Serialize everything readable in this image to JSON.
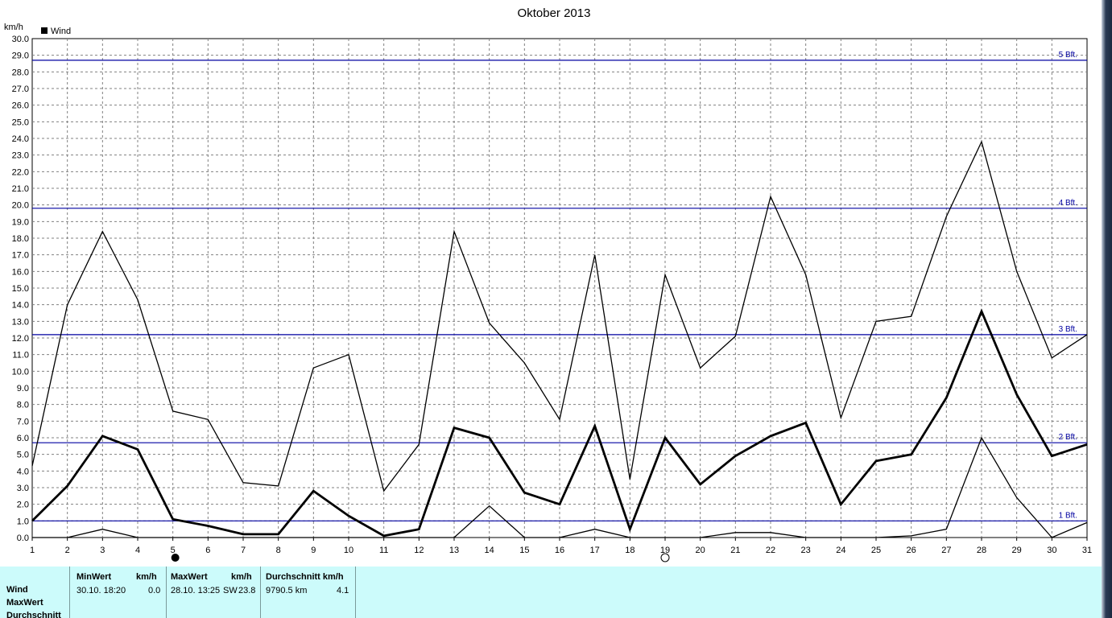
{
  "chart_data": {
    "type": "line",
    "title": "Oktober 2013",
    "ylabel": "km/h",
    "legend": "Wind",
    "ylim": [
      0,
      30
    ],
    "yticks": [
      "0.0",
      "1.0",
      "2.0",
      "3.0",
      "4.0",
      "5.0",
      "6.0",
      "7.0",
      "8.0",
      "9.0",
      "10.0",
      "11.0",
      "12.0",
      "13.0",
      "14.0",
      "15.0",
      "16.0",
      "17.0",
      "18.0",
      "19.0",
      "20.0",
      "21.0",
      "22.0",
      "23.0",
      "24.0",
      "25.0",
      "26.0",
      "27.0",
      "28.0",
      "29.0",
      "30.0"
    ],
    "x": [
      "1",
      "2",
      "3",
      "4",
      "5",
      "6",
      "7",
      "8",
      "9",
      "10",
      "11",
      "12",
      "13",
      "14",
      "15",
      "16",
      "17",
      "18",
      "19",
      "20",
      "21",
      "22",
      "23",
      "24",
      "25",
      "26",
      "27",
      "28",
      "29",
      "30",
      "31"
    ],
    "series": [
      {
        "role": "max",
        "stroke": "#000000",
        "width": 1.3,
        "values": [
          4.3,
          14.0,
          18.4,
          14.3,
          7.6,
          7.1,
          3.3,
          3.1,
          10.2,
          11.0,
          2.8,
          5.6,
          18.4,
          12.9,
          10.5,
          7.1,
          17.0,
          3.5,
          15.8,
          10.2,
          12.1,
          20.5,
          15.8,
          7.2,
          13.0,
          13.3,
          19.3,
          23.8,
          16.0,
          10.8,
          12.2
        ]
      },
      {
        "role": "average",
        "stroke": "#000000",
        "width": 2.8,
        "values": [
          1.0,
          3.1,
          6.1,
          5.3,
          1.1,
          0.7,
          0.2,
          0.2,
          2.8,
          1.3,
          0.1,
          0.5,
          6.6,
          6.0,
          2.7,
          2.0,
          6.7,
          0.5,
          6.0,
          3.2,
          4.9,
          6.1,
          6.9,
          2.0,
          4.6,
          5.0,
          8.4,
          13.6,
          8.6,
          4.9,
          5.6
        ]
      },
      {
        "role": "min",
        "stroke": "#000000",
        "width": 1.3,
        "values": [
          0.0,
          0.0,
          0.5,
          0.0,
          0.0,
          0.0,
          0.0,
          0.0,
          0.0,
          0.0,
          0.0,
          0.0,
          0.0,
          1.9,
          0.0,
          0.0,
          0.5,
          0.0,
          0.0,
          0.0,
          0.3,
          0.3,
          0.0,
          0.0,
          0.0,
          0.1,
          0.5,
          6.0,
          2.4,
          0.0,
          0.9
        ]
      }
    ],
    "reference_lines": [
      {
        "label": "1 Bft.",
        "value": 1.0
      },
      {
        "label": "2 Bft.",
        "value": 5.7
      },
      {
        "label": "3 Bft.",
        "value": 12.2
      },
      {
        "label": "4 Bft.",
        "value": 19.8
      },
      {
        "label": "5 Bft.",
        "value": 28.7
      }
    ],
    "moon_phases": [
      {
        "day": 5,
        "phase": "new"
      },
      {
        "day": 19,
        "phase": "full"
      }
    ],
    "grid": true,
    "colors": {
      "reference_line": "#0000a0",
      "series": "#000000",
      "grid": "#808080"
    }
  },
  "stats": {
    "row_labels": [
      "Wind",
      "MaxWert",
      "Durchschnitt"
    ],
    "min": {
      "header": "MinWert",
      "unit": "km/h",
      "date": "30.10.  18:20",
      "value": "0.0"
    },
    "max": {
      "header": "MaxWert",
      "unit": "km/h",
      "date": "28.10.  13:25",
      "dir": "SW",
      "value": "23.8"
    },
    "avg": {
      "header": "Durchschnitt km/h",
      "distance": "9790.5 km",
      "value": "4.1"
    }
  }
}
